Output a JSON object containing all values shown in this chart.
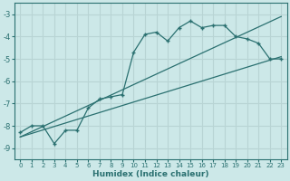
{
  "xlabel": "Humidex (Indice chaleur)",
  "bg_color": "#cce8e8",
  "grid_color": "#b8d4d4",
  "line_color": "#2a7070",
  "xlim": [
    -0.5,
    23.5
  ],
  "ylim": [
    -9.5,
    -2.5
  ],
  "yticks": [
    -9,
    -8,
    -7,
    -6,
    -5,
    -4,
    -3
  ],
  "xticks": [
    0,
    1,
    2,
    3,
    4,
    5,
    6,
    7,
    8,
    9,
    10,
    11,
    12,
    13,
    14,
    15,
    16,
    17,
    18,
    19,
    20,
    21,
    22,
    23
  ],
  "data_x": [
    0,
    1,
    2,
    3,
    4,
    5,
    6,
    7,
    8,
    9,
    10,
    11,
    12,
    13,
    14,
    15,
    16,
    17,
    18,
    19,
    20,
    21,
    22,
    23
  ],
  "data_y": [
    -8.3,
    -8.0,
    -8.0,
    -8.8,
    -8.2,
    -8.2,
    -7.2,
    -6.8,
    -6.7,
    -6.6,
    -4.7,
    -3.9,
    -3.8,
    -4.2,
    -3.6,
    -3.3,
    -3.6,
    -3.5,
    -3.5,
    -4.0,
    -4.1,
    -4.3,
    -5.0,
    -5.0
  ],
  "line1_x": [
    0,
    23
  ],
  "line1_y": [
    -8.5,
    -4.9
  ],
  "line2_x": [
    0,
    23
  ],
  "line2_y": [
    -8.5,
    -3.1
  ]
}
